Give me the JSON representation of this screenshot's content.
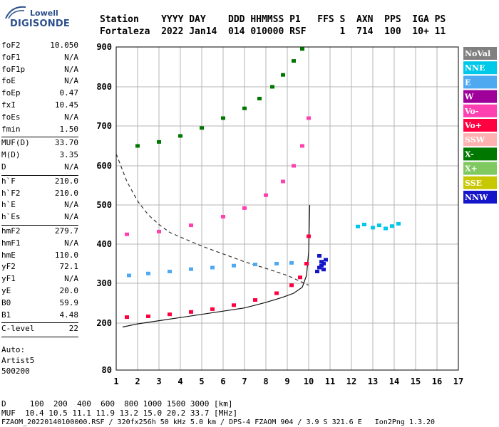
{
  "brand": {
    "line1": "Lowell",
    "line2": "DIGISONDE"
  },
  "header": {
    "row1": "Station    YYYY DAY    DDD HHMMSS P1   FFS S  AXN  PPS  IGA PS",
    "row2": "Fortaleza  2022 Jan14  014 010000 RSF      1  714  100  10+ 11"
  },
  "params": [
    {
      "label": "foF2",
      "value": "10.050"
    },
    {
      "label": "foF1",
      "value": "N/A"
    },
    {
      "label": "foF1p",
      "value": "N/A"
    },
    {
      "label": "foE",
      "value": "N/A"
    },
    {
      "label": "foEp",
      "value": "0.47"
    },
    {
      "label": "fxI",
      "value": "10.45"
    },
    {
      "label": "foEs",
      "value": "N/A"
    },
    {
      "label": "fmin",
      "value": "1.50",
      "sep_after": true
    },
    {
      "label": "MUF(D)",
      "value": "33.70"
    },
    {
      "label": "M(D)",
      "value": "3.35"
    },
    {
      "label": "D",
      "value": "N/A",
      "sep_after": true
    },
    {
      "label": "h`F",
      "value": "210.0"
    },
    {
      "label": "h`F2",
      "value": "210.0"
    },
    {
      "label": "h`E",
      "value": "N/A"
    },
    {
      "label": "h`Es",
      "value": "N/A",
      "sep_after": true
    },
    {
      "label": "hmF2",
      "value": "279.7"
    },
    {
      "label": "hmF1",
      "value": "N/A"
    },
    {
      "label": "hmE",
      "value": "110.0"
    },
    {
      "label": "yF2",
      "value": "72.1"
    },
    {
      "label": "yF1",
      "value": "N/A"
    },
    {
      "label": "yE",
      "value": "20.0"
    },
    {
      "label": "B0",
      "value": "59.9"
    },
    {
      "label": "B1",
      "value": "4.48",
      "sep_after": true
    },
    {
      "label": "C-level",
      "value": "22",
      "sep_after": true
    }
  ],
  "autoscaling": {
    "line1": "Auto:",
    "line2": "Artist5",
    "line3": "500200"
  },
  "footer": {
    "d_row": "D     100  200  400  600  800 1000 1500 3000 [km]",
    "muf_row": "MUF  10.4 10.5 11.1 11.9 13.2 15.0 20.2 33.7 [MHz]",
    "file_row": "FZAOM_20220140100000.RSF / 320fx256h 50 kHz 5.0 km / DPS-4 FZAOM 904 / 3.9 S 321.6 E   Ion2Png 1.3.20"
  },
  "chart_data": {
    "type": "scatter",
    "title": "",
    "xlabel": "",
    "ylabel": "",
    "xlim": [
      1,
      17
    ],
    "ylim": [
      80,
      900
    ],
    "x_ticks": [
      1,
      2,
      3,
      4,
      5,
      6,
      7,
      8,
      9,
      10,
      11,
      12,
      13,
      14,
      15,
      16,
      17
    ],
    "y_ticks": [
      80,
      200,
      300,
      400,
      500,
      600,
      700,
      800,
      900
    ],
    "grid": true,
    "legend_position": "right",
    "legend": [
      {
        "name": "NoVal",
        "color": "#808080"
      },
      {
        "name": "NNE",
        "color": "#00c8e8"
      },
      {
        "name": "E",
        "color": "#4fa9f0"
      },
      {
        "name": "W",
        "color": "#a0009a"
      },
      {
        "name": "Vo-",
        "color": "#ff40b0"
      },
      {
        "name": "Vo+",
        "color": "#ff0040"
      },
      {
        "name": "SSW",
        "color": "#ffb0b0"
      },
      {
        "name": "X-",
        "color": "#007800"
      },
      {
        "name": "X+",
        "color": "#80c860"
      },
      {
        "name": "SSE",
        "color": "#c8c800"
      },
      {
        "name": "NNW",
        "color": "#1414c8"
      }
    ],
    "series": [
      {
        "name": "Vo+",
        "color": "#ff0040",
        "x": [
          1.5,
          2.5,
          3.5,
          4.5,
          5.5,
          6.5,
          7.5,
          8.5,
          9.2,
          9.6,
          9.9,
          10.0
        ],
        "y": [
          215,
          217,
          222,
          228,
          235,
          245,
          258,
          275,
          295,
          315,
          350,
          420
        ]
      },
      {
        "name": "Vo-",
        "color": "#ff40b0",
        "x": [
          1.5,
          3.0,
          4.5,
          6.0,
          7.0,
          8.0,
          8.8,
          9.3,
          9.7,
          10.0
        ],
        "y": [
          425,
          432,
          448,
          470,
          492,
          525,
          560,
          600,
          650,
          720
        ]
      },
      {
        "name": "X-",
        "color": "#007800",
        "x": [
          2.0,
          3.0,
          4.0,
          5.0,
          6.0,
          7.0,
          7.7,
          8.3,
          8.8,
          9.3,
          9.7
        ],
        "y": [
          650,
          660,
          675,
          695,
          720,
          745,
          770,
          800,
          830,
          865,
          895
        ]
      },
      {
        "name": "E",
        "color": "#4fa9f0",
        "x": [
          1.6,
          2.5,
          3.5,
          4.5,
          5.5,
          6.5,
          7.5,
          8.5,
          9.2
        ],
        "y": [
          320,
          325,
          330,
          336,
          340,
          345,
          348,
          350,
          352
        ]
      },
      {
        "name": "NNW",
        "color": "#1414c8",
        "x": [
          10.4,
          10.5,
          10.6,
          10.7,
          10.8,
          10.5,
          10.6,
          10.7
        ],
        "y": [
          330,
          340,
          345,
          350,
          360,
          370,
          355,
          335
        ]
      },
      {
        "name": "NNE",
        "color": "#00c8e8",
        "x": [
          12.3,
          12.6,
          13.0,
          13.3,
          13.6,
          13.9,
          14.2
        ],
        "y": [
          445,
          450,
          442,
          448,
          440,
          446,
          452
        ]
      }
    ],
    "profile_curve": {
      "x": [
        1.3,
        2.0,
        3.0,
        4.0,
        5.0,
        6.0,
        7.0,
        8.0,
        8.8,
        9.3,
        9.7,
        9.9,
        10.0,
        10.05
      ],
      "y": [
        190,
        198,
        206,
        214,
        222,
        230,
        238,
        252,
        265,
        275,
        290,
        320,
        380,
        500
      ]
    },
    "muf_curve": {
      "x": [
        1.0,
        1.5,
        2.0,
        2.5,
        3.0,
        3.5,
        4.0,
        5.0,
        6.0,
        7.0,
        8.0,
        9.0,
        10.0
      ],
      "y": [
        630,
        560,
        510,
        475,
        450,
        430,
        418,
        395,
        375,
        355,
        338,
        320,
        295
      ]
    }
  }
}
